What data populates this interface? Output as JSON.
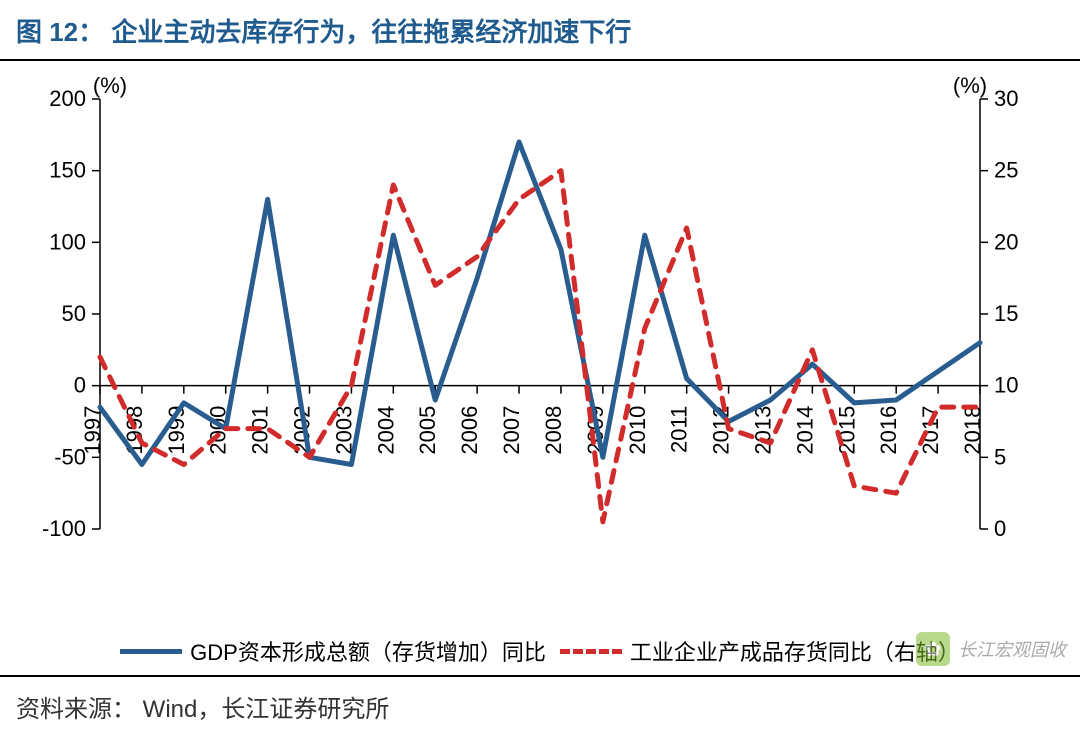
{
  "figure": {
    "prefix": "图 12：",
    "title": "企业主动去库存行为，往往拖累经济加速下行",
    "title_color": "#1f5b8e",
    "title_fontsize": 26
  },
  "chart": {
    "type": "line-dual-axis",
    "background_color": "#ffffff",
    "axis_color": "#000000",
    "left_axis": {
      "unit": "(%)",
      "min": -100,
      "max": 200,
      "ticks": [
        -100,
        -50,
        0,
        50,
        100,
        150,
        200
      ],
      "fontsize": 22
    },
    "right_axis": {
      "unit": "(%)",
      "min": 0,
      "max": 30,
      "ticks": [
        0,
        5,
        10,
        15,
        20,
        25,
        30
      ],
      "fontsize": 22
    },
    "x_axis": {
      "categories": [
        "1997",
        "1998",
        "1999",
        "2000",
        "2001",
        "2002",
        "2003",
        "2004",
        "2005",
        "2006",
        "2007",
        "2008",
        "2009",
        "2010",
        "2011",
        "2012",
        "2013",
        "2014",
        "2015",
        "2016",
        "2017",
        "2018"
      ],
      "rotation": -90,
      "fontsize": 22
    },
    "series": [
      {
        "name": "GDP资本形成总额（存货增加）同比",
        "axis": "left",
        "color": "#2a5d8f",
        "line_width": 5,
        "style": "solid",
        "data": [
          -15,
          -55,
          -12,
          -30,
          130,
          -50,
          -55,
          105,
          -10,
          75,
          170,
          95,
          -50,
          105,
          5,
          -25,
          -10,
          15,
          -12,
          -10,
          10,
          30
        ]
      },
      {
        "name": "工业企业产成品存货同比（右轴）",
        "axis": "right",
        "color": "#d22b2b",
        "line_width": 5,
        "style": "dashed",
        "data": [
          12,
          6,
          4.5,
          7,
          7,
          5,
          10,
          24,
          17,
          19,
          23,
          25,
          0.5,
          14,
          21,
          7,
          6,
          12.5,
          3,
          2.5,
          8.5,
          8.5
        ]
      }
    ]
  },
  "legend": {
    "items": [
      {
        "label": "GDP资本形成总额（存货增加）同比",
        "color": "#2a5d8f",
        "style": "solid"
      },
      {
        "label": "工业企业产成品存货同比（右轴）",
        "color": "#d22b2b",
        "style": "dashed"
      }
    ],
    "fontsize": 22
  },
  "source": {
    "label": "资料来源：",
    "text": "Wind，长江证券研究所"
  },
  "watermark": {
    "text": "长江宏观固收",
    "icon_glyph": "✿",
    "icon_bg": "#7fb92e"
  }
}
